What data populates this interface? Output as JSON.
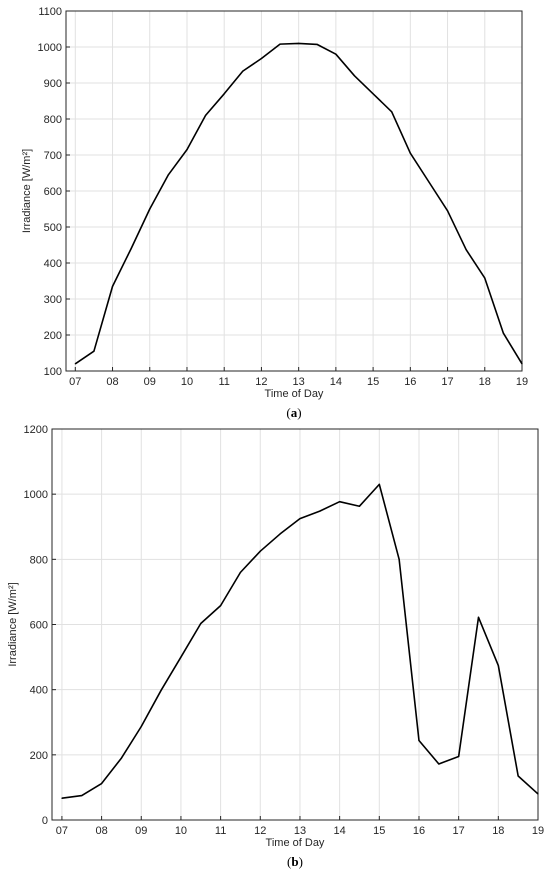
{
  "style": {
    "line_color": "#000000",
    "grid_color": "#e1e1e1",
    "axis_color": "#262626"
  },
  "chart_data": [
    {
      "type": "line",
      "caption_letter": "a",
      "title": "",
      "xlabel": "Time of Day",
      "ylabel": "Irradiance [W/m²]",
      "xlim": [
        6.75,
        19
      ],
      "ylim": [
        100,
        1100
      ],
      "xticks": [
        "07",
        "08",
        "09",
        "10",
        "11",
        "12",
        "13",
        "14",
        "15",
        "16",
        "17",
        "18",
        "19"
      ],
      "yticks": [
        100,
        200,
        300,
        400,
        500,
        600,
        700,
        800,
        900,
        1000,
        1100
      ],
      "grid": true,
      "series": [
        {
          "x": [
            7.0,
            7.5,
            8.0,
            8.5,
            9.0,
            9.5,
            10.0,
            10.5,
            11.0,
            11.5,
            12.0,
            12.5,
            13.0,
            13.5,
            14.0,
            14.5,
            15.0,
            15.5,
            16.0,
            16.5,
            17.0,
            17.5,
            18.0,
            18.5,
            19.0
          ],
          "y": [
            120,
            155,
            335,
            440,
            550,
            645,
            715,
            810,
            870,
            933,
            968,
            1008,
            1010,
            1007,
            980,
            920,
            870,
            820,
            705,
            625,
            545,
            437,
            358,
            205,
            120
          ]
        }
      ]
    },
    {
      "type": "line",
      "caption_letter": "b",
      "title": "",
      "xlabel": "Time of Day",
      "ylabel": "Irradiance [W/m²]",
      "xlim": [
        6.75,
        19
      ],
      "ylim": [
        0,
        1200
      ],
      "xticks": [
        "07",
        "08",
        "09",
        "10",
        "11",
        "12",
        "13",
        "14",
        "15",
        "16",
        "17",
        "18",
        "19"
      ],
      "yticks": [
        0,
        200,
        400,
        600,
        800,
        1000,
        1200
      ],
      "grid": true,
      "series": [
        {
          "x": [
            7.0,
            7.5,
            8.0,
            8.5,
            9.0,
            9.5,
            10.0,
            10.5,
            11.0,
            11.5,
            12.0,
            12.5,
            13.0,
            13.5,
            14.0,
            14.5,
            15.0,
            15.5,
            16.0,
            16.5,
            17.0,
            17.5,
            18.0,
            18.5,
            19.0
          ],
          "y": [
            67,
            75,
            112,
            190,
            287,
            398,
            500,
            603,
            658,
            760,
            825,
            878,
            925,
            948,
            977,
            963,
            1030,
            800,
            244,
            172,
            195,
            622,
            474,
            135,
            80
          ]
        }
      ]
    }
  ]
}
